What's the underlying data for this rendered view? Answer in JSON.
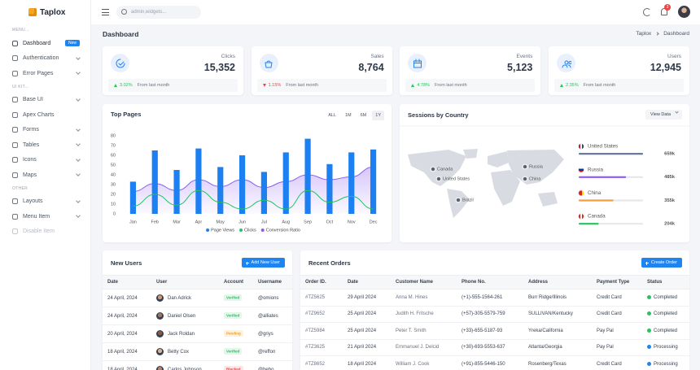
{
  "sidebar": {
    "brand": "Taplox",
    "sections": [
      {
        "label": "MENU...",
        "items": [
          {
            "label": "Dashboard",
            "badge": "New",
            "active": true
          },
          {
            "label": "Authentication",
            "arrow": true
          },
          {
            "label": "Error Pages",
            "arrow": true
          }
        ]
      },
      {
        "label": "UI KIT...",
        "items": [
          {
            "label": "Base UI",
            "arrow": true
          },
          {
            "label": "Apex Charts"
          },
          {
            "label": "Forms",
            "arrow": true
          },
          {
            "label": "Tables",
            "arrow": true
          },
          {
            "label": "Icons",
            "arrow": true
          },
          {
            "label": "Maps",
            "arrow": true
          }
        ]
      },
      {
        "label": "OTHER",
        "items": [
          {
            "label": "Layouts",
            "arrow": true
          },
          {
            "label": "Menu Item",
            "arrow": true
          },
          {
            "label": "Disable Item",
            "disabled": true
          }
        ]
      }
    ]
  },
  "topbar": {
    "search_placeholder": "admin,widgets...",
    "notifications": "3"
  },
  "header": {
    "title": "Dashboard",
    "breadcrumb": [
      "Taplox",
      "Dashboard"
    ]
  },
  "stats": [
    {
      "label": "Clicks",
      "value": "15,352",
      "change": "3.02%",
      "direction": "up",
      "note": "From last month"
    },
    {
      "label": "Sales",
      "value": "8,764",
      "change": "1.15%",
      "direction": "down",
      "note": "From last month"
    },
    {
      "label": "Events",
      "value": "5,123",
      "change": "4.78%",
      "direction": "up",
      "note": "From last month"
    },
    {
      "label": "Users",
      "value": "12,945",
      "change": "2.35%",
      "direction": "up",
      "note": "From last month"
    }
  ],
  "chart_data": {
    "type": "combo",
    "title": "Top Pages",
    "ranges": [
      {
        "label": "ALL"
      },
      {
        "label": "1M"
      },
      {
        "label": "6M"
      },
      {
        "label": "1Y",
        "active": true
      }
    ],
    "categories": [
      "Jan",
      "Feb",
      "Mar",
      "Apr",
      "May",
      "Jun",
      "Jul",
      "Aug",
      "Sep",
      "Oct",
      "Nov",
      "Dec"
    ],
    "series": [
      {
        "name": "Page Views",
        "type": "bar",
        "color": "#1c7ff2",
        "values": [
          33,
          65,
          45,
          67,
          48,
          60,
          43,
          63,
          77,
          51,
          63,
          66
        ]
      },
      {
        "name": "Clicks",
        "type": "line",
        "color": "#22c55e",
        "values": [
          8,
          20,
          9,
          24,
          12,
          5,
          14,
          5,
          24,
          12,
          18,
          5
        ]
      },
      {
        "name": "Conversion Ratio",
        "type": "area",
        "color": "#8b5cf6",
        "values": [
          23,
          31,
          24,
          35,
          28,
          35,
          27,
          33,
          40,
          35,
          38,
          48
        ]
      }
    ],
    "ylim": [
      0,
      80
    ],
    "yticks": [
      0,
      10,
      20,
      30,
      40,
      50,
      60,
      70,
      80
    ],
    "grid": false
  },
  "sessions": {
    "title": "Sessions by Country",
    "button": "View Data",
    "map_labels": [
      "Canada",
      "United States",
      "Russia",
      "China",
      "Brazil"
    ],
    "countries": [
      {
        "name": "United States",
        "value": 659,
        "value_label": "659k",
        "color": "#6b7a99"
      },
      {
        "name": "Russia",
        "value": 485,
        "value_label": "485k",
        "color": "#8b5cf6"
      },
      {
        "name": "China",
        "value": 355,
        "value_label": "355k",
        "color": "#f59e42"
      },
      {
        "name": "Canada",
        "value": 204,
        "value_label": "204k",
        "color": "#22c55e"
      }
    ]
  },
  "new_users": {
    "title": "New Users",
    "button": "Add New User",
    "columns": [
      "Date",
      "User",
      "Account",
      "Username"
    ],
    "rows": [
      {
        "date": "24 April, 2024",
        "user": "Dan Adrick",
        "account": "Verified",
        "account_color": "#22c55e",
        "username": "@omions"
      },
      {
        "date": "24 April, 2024",
        "user": "Daniel Olsen",
        "account": "Verified",
        "account_color": "#22c55e",
        "username": "@alliates"
      },
      {
        "date": "20 April, 2024",
        "user": "Jack Roldan",
        "account": "Pending",
        "account_color": "#f59e0b",
        "username": "@griys"
      },
      {
        "date": "18 April, 2024",
        "user": "Betty Cox",
        "account": "Verified",
        "account_color": "#22c55e",
        "username": "@reffon"
      },
      {
        "date": "18 April, 2024",
        "user": "Carlos Johnson",
        "account": "Blocked",
        "account_color": "#ef4444",
        "username": "@bebo"
      }
    ]
  },
  "recent_orders": {
    "title": "Recent Orders",
    "button": "Create Order",
    "columns": [
      "Order ID.",
      "Date",
      "Customer Name",
      "Phone No.",
      "Address",
      "Payment Type",
      "Status"
    ],
    "rows": [
      {
        "id": "#TZ5625",
        "date": "29 April 2024",
        "customer": "Anna M. Hines",
        "phone": "(+1)-555-1564-261",
        "address": "Burr Ridge/Illinois",
        "payment": "Credit Card",
        "status": "Completed",
        "status_color": "#22c55e"
      },
      {
        "id": "#TZ9652",
        "date": "25 April 2024",
        "customer": "Judith H. Fritsche",
        "phone": "(+57)-305-5579-759",
        "address": "SULLIVAN/Kentucky",
        "payment": "Credit Card",
        "status": "Completed",
        "status_color": "#22c55e"
      },
      {
        "id": "#TZ5984",
        "date": "25 April 2024",
        "customer": "Peter T. Smith",
        "phone": "(+33)-655-5187-93",
        "address": "Yreka/California",
        "payment": "Pay Pal",
        "status": "Completed",
        "status_color": "#22c55e"
      },
      {
        "id": "#TZ3625",
        "date": "21 April 2024",
        "customer": "Emmanuel J. Delcid",
        "phone": "(+30)-693-5553-637",
        "address": "Atlanta/Georgia",
        "payment": "Pay Pal",
        "status": "Processing",
        "status_color": "#1e84f0"
      },
      {
        "id": "#TZ8652",
        "date": "18 April 2024",
        "customer": "William J. Cook",
        "phone": "(+91)-855-5446-150",
        "address": "Rosenberg/Texas",
        "payment": "Credit Card",
        "status": "Processing",
        "status_color": "#1e84f0"
      }
    ]
  }
}
